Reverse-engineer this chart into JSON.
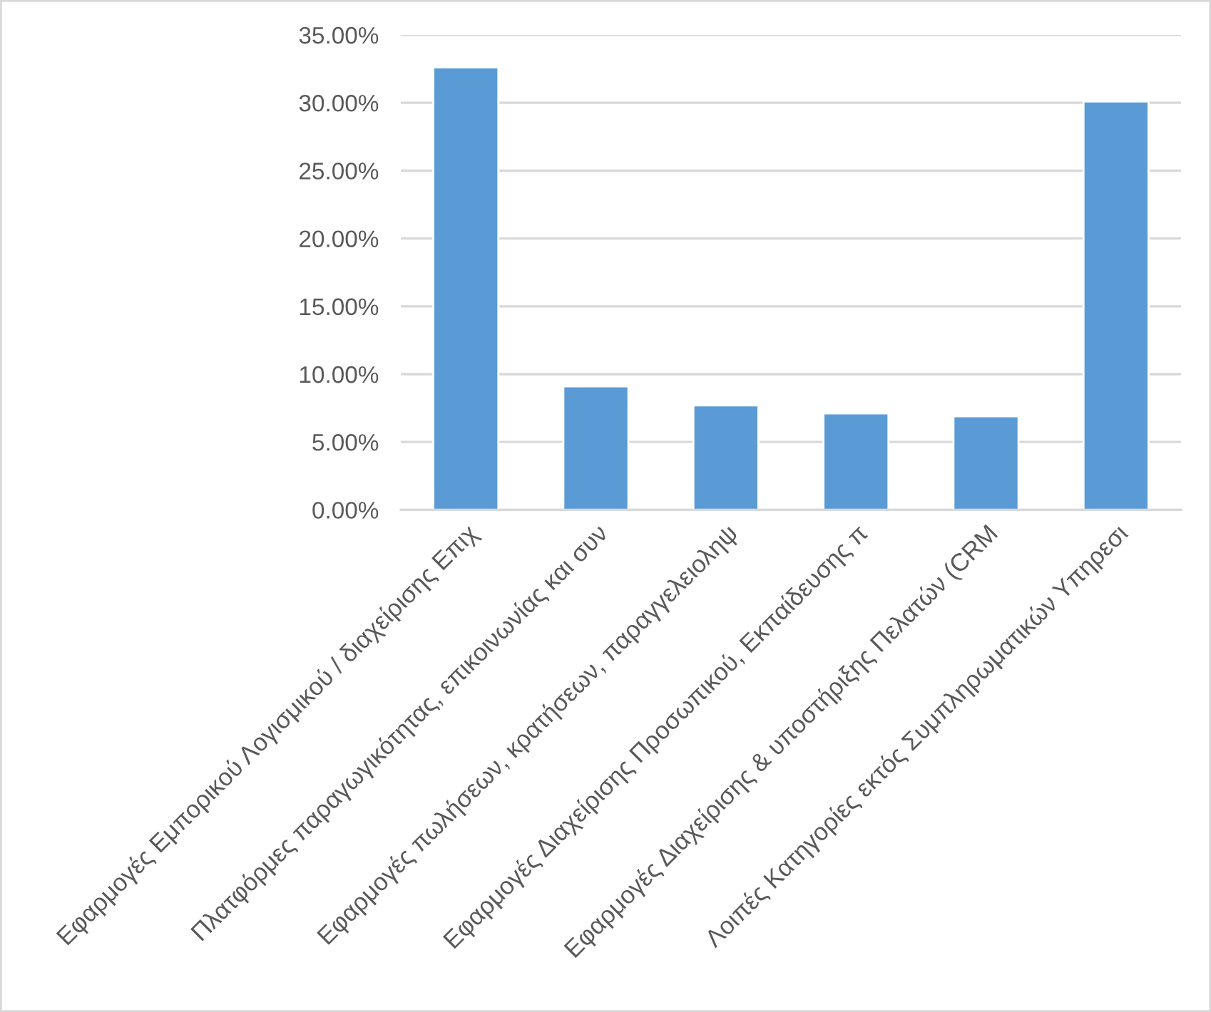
{
  "chart_data": {
    "type": "bar",
    "categories": [
      "Εφαρμογές Εμπορικού Λογισμικού / διαχείρισης Επιχ",
      "Πλατφόρμες παραγωγικότητας, επικοινωνίας και συν",
      "Εφαρμογές πωλήσεων, κρατήσεων, παραγγελειοληψ",
      "Εφαρμογές Διαχείρισης Προσωπικού, Εκπαίδευσης π",
      "Εφαρμογές Διαχείρισης & υποστήριξης Πελατών (CRM",
      "Λοιπές Κατηγορίες εκτός Συμπληρωματικών Υπηρεσι"
    ],
    "values": [
      32.6,
      9.1,
      7.7,
      7.1,
      6.9,
      30.1
    ],
    "color": "#5b9bd5",
    "ylim": [
      0,
      35
    ],
    "yticks": [
      {
        "value": 0,
        "label": "0.00%"
      },
      {
        "value": 5,
        "label": "5.00%"
      },
      {
        "value": 10,
        "label": "10.00%"
      },
      {
        "value": 15,
        "label": "15.00%"
      },
      {
        "value": 20,
        "label": "20.00%"
      },
      {
        "value": 25,
        "label": "25.00%"
      },
      {
        "value": 30,
        "label": "30.00%"
      },
      {
        "value": 35,
        "label": "35.00%"
      }
    ],
    "grid": "y"
  }
}
